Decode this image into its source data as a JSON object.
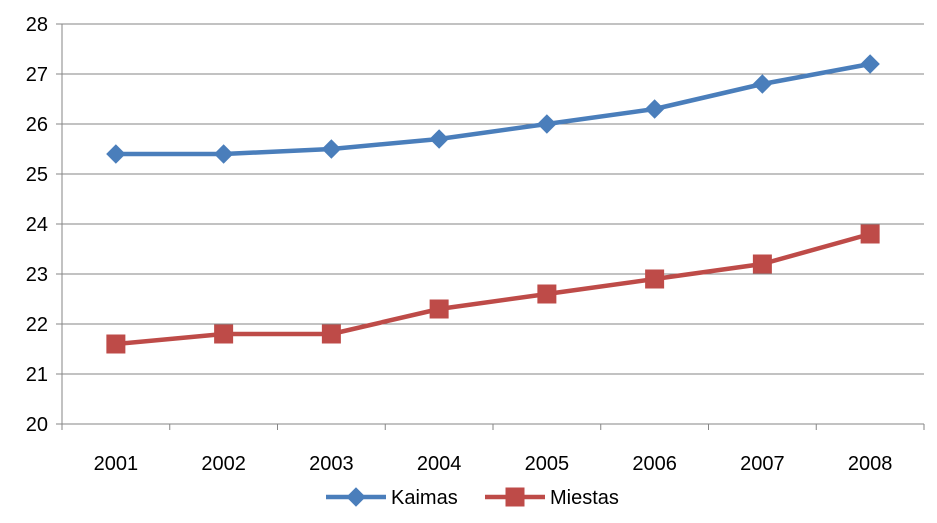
{
  "chart_data": {
    "type": "line",
    "title": "",
    "xlabel": "",
    "ylabel": "",
    "categories": [
      "2001",
      "2002",
      "2003",
      "2004",
      "2005",
      "2006",
      "2007",
      "2008"
    ],
    "ylim": [
      20,
      28
    ],
    "yticks": [
      "20",
      "21",
      "22",
      "23",
      "24",
      "25",
      "26",
      "27",
      "28"
    ],
    "grid": "horizontal",
    "legend_position": "bottom",
    "series": [
      {
        "name": "Kaimas",
        "values": [
          25.4,
          25.4,
          25.5,
          25.7,
          26.0,
          26.3,
          26.8,
          27.2
        ],
        "color": "#4A7EBB",
        "marker": "diamond"
      },
      {
        "name": "Miestas",
        "values": [
          21.6,
          21.8,
          21.8,
          22.3,
          22.6,
          22.9,
          23.2,
          23.8
        ],
        "color": "#BE4B48",
        "marker": "square"
      }
    ]
  }
}
